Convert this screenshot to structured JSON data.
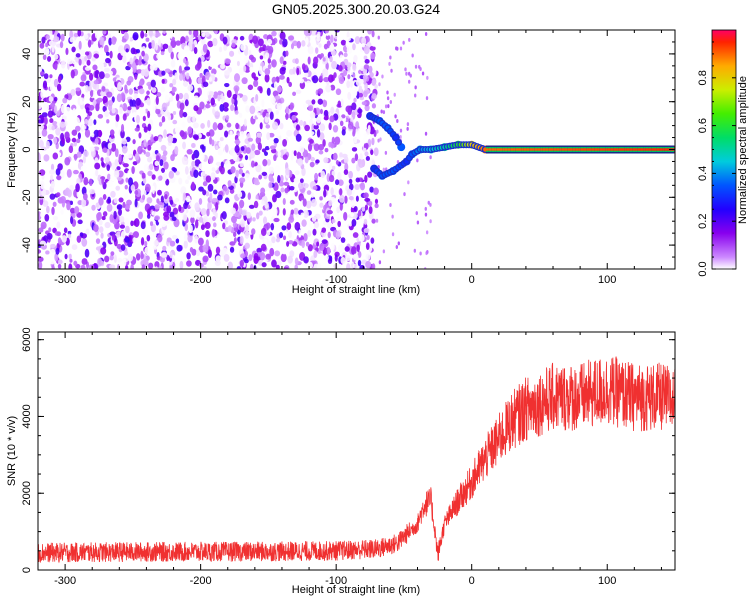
{
  "title": "GN05.2025.300.20.03.G24",
  "chart_data": [
    {
      "type": "heatmap",
      "xlabel": "Height of straight line (km)",
      "ylabel": "Frequency (Hz)",
      "xlim": [
        -320,
        150
      ],
      "ylim": [
        -50,
        50
      ],
      "x_ticks": [
        -300,
        -200,
        -100,
        0,
        100
      ],
      "y_ticks": [
        -40,
        -20,
        0,
        20,
        40
      ],
      "colorbar": {
        "label": "Normalized spectral amplitude",
        "range": [
          0,
          1
        ],
        "ticks": [
          "0.0",
          "0.2",
          "0.4",
          "0.6",
          "0.8"
        ],
        "tick_values": [
          0.0,
          0.2,
          0.4,
          0.6,
          0.8
        ]
      },
      "noise_region": {
        "x_range": [
          -320,
          -70
        ],
        "amplitude_range": [
          0.0,
          0.15
        ]
      },
      "signal_track": [
        {
          "x": -75,
          "f": 14,
          "a": 0.3
        },
        {
          "x": -68,
          "f": 12,
          "a": 0.35
        },
        {
          "x": -62,
          "f": 9,
          "a": 0.35
        },
        {
          "x": -56,
          "f": 5,
          "a": 0.3
        },
        {
          "x": -52,
          "f": 1,
          "a": 0.35
        },
        {
          "x": -72,
          "f": -8,
          "a": 0.3
        },
        {
          "x": -66,
          "f": -11,
          "a": 0.35
        },
        {
          "x": -58,
          "f": -9,
          "a": 0.35
        },
        {
          "x": -48,
          "f": -5,
          "a": 0.3
        },
        {
          "x": -44,
          "f": -2,
          "a": 0.35
        },
        {
          "x": -38,
          "f": 0,
          "a": 0.4
        },
        {
          "x": -30,
          "f": 0,
          "a": 0.45
        },
        {
          "x": -20,
          "f": 1,
          "a": 0.5
        },
        {
          "x": -10,
          "f": 2,
          "a": 0.6
        },
        {
          "x": 0,
          "f": 2,
          "a": 0.8
        },
        {
          "x": 10,
          "f": 0,
          "a": 0.9
        },
        {
          "x": 150,
          "f": 0,
          "a": 0.95
        }
      ]
    },
    {
      "type": "line",
      "xlabel": "Height of straight line (km)",
      "ylabel": "SNR (10 * v/v)",
      "xlim": [
        -320,
        150
      ],
      "ylim": [
        0,
        6200
      ],
      "x_ticks": [
        -300,
        -200,
        -100,
        0,
        100
      ],
      "y_ticks": [
        0,
        2000,
        4000,
        6000
      ],
      "color": "#f03030",
      "series": [
        {
          "name": "SNR",
          "x": [
            -320,
            -250,
            -150,
            -100,
            -70,
            -55,
            -40,
            -35,
            -30,
            -25,
            -20,
            -10,
            0,
            10,
            20,
            30,
            40,
            60,
            80,
            100,
            120,
            140,
            150
          ],
          "values": [
            450,
            470,
            480,
            500,
            550,
            700,
            1200,
            1700,
            1800,
            400,
            1200,
            1800,
            2300,
            2900,
            3400,
            3900,
            4200,
            4500,
            4500,
            4700,
            4500,
            4500,
            4400
          ]
        }
      ]
    }
  ]
}
